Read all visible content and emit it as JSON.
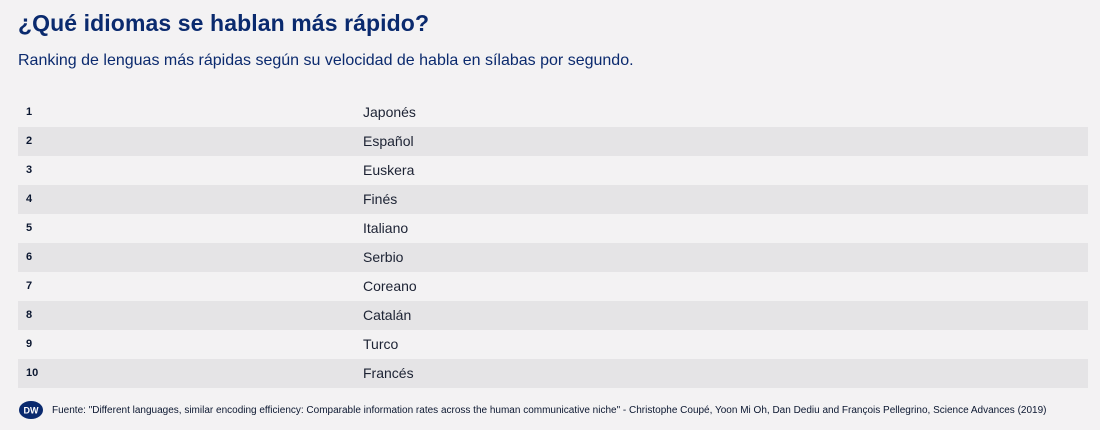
{
  "title": "¿Qué idiomas se hablan más rápido?",
  "subtitle": "Ranking de lenguas más rápidas según su velocidad de habla en sílabas por segundo.",
  "ranking": [
    {
      "rank": "1",
      "language": "Japonés"
    },
    {
      "rank": "2",
      "language": "Español"
    },
    {
      "rank": "3",
      "language": "Euskera"
    },
    {
      "rank": "4",
      "language": "Finés"
    },
    {
      "rank": "5",
      "language": "Italiano"
    },
    {
      "rank": "6",
      "language": "Serbio"
    },
    {
      "rank": "7",
      "language": "Coreano"
    },
    {
      "rank": "8",
      "language": "Catalán"
    },
    {
      "rank": "9",
      "language": "Turco"
    },
    {
      "rank": "10",
      "language": "Francés"
    }
  ],
  "footer": {
    "logo": "DW",
    "source": "Fuente: \"Different languages, similar encoding efficiency: Comparable information rates across the human communicative niche\" - Christophe Coupé, Yoon Mi Oh, Dan Dediu and François Pellegrino, Science Advances (2019)"
  },
  "colors": {
    "background": "#f3f2f3",
    "title": "#0a2a6e",
    "row_alt": "#e5e4e6",
    "logo": "#0a2a6e"
  }
}
